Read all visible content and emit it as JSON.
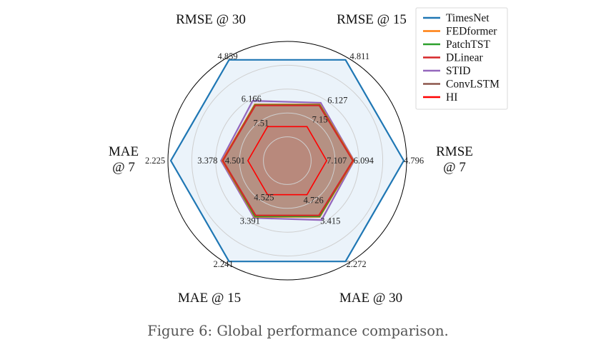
{
  "caption": "Figure 6: Global performance comparison.",
  "chart_data": {
    "type": "radar",
    "axes": [
      "RMSE @ 7",
      "RMSE @ 15",
      "RMSE @ 30",
      "MAE @ 7",
      "MAE @ 15",
      "MAE @ 30"
    ],
    "axis_label_lines": [
      [
        "RMSE",
        "@ 7"
      ],
      [
        "RMSE @ 15"
      ],
      [
        "RMSE @ 30"
      ],
      [
        "MAE",
        "@ 7"
      ],
      [
        "MAE @ 15"
      ],
      [
        "MAE @ 30"
      ]
    ],
    "radius_fraction": [
      0.976,
      0.976,
      0.976,
      0.976,
      0.976,
      0.976
    ],
    "series": [
      {
        "name": "TimesNet",
        "color": "#1f77b4",
        "fill": "#ddebf7",
        "fill_opacity": 0.6,
        "values": [
          0.976,
          0.976,
          0.976,
          0.976,
          0.976,
          0.976
        ]
      },
      {
        "name": "FEDformer",
        "color": "#ff7f0e",
        "fill": "#ff7f0e",
        "fill_opacity": 0.12,
        "values": [
          0.555,
          0.545,
          0.545,
          0.545,
          0.545,
          0.545
        ]
      },
      {
        "name": "PatchTST",
        "color": "#2ca02c",
        "fill": "#2ca02c",
        "fill_opacity": 0.1,
        "values": [
          0.55,
          0.54,
          0.54,
          0.54,
          0.54,
          0.54
        ]
      },
      {
        "name": "DLinear",
        "color": "#d62728",
        "fill": "#d62728",
        "fill_opacity": 0.1,
        "values": [
          0.55,
          0.535,
          0.535,
          0.54,
          0.53,
          0.53
        ]
      },
      {
        "name": "STID",
        "color": "#9467bd",
        "fill": "#9467bd",
        "fill_opacity": 0.12,
        "values": [
          0.56,
          0.56,
          0.58,
          0.555,
          0.555,
          0.575
        ]
      },
      {
        "name": "ConvLSTM",
        "color": "#8c564b",
        "fill": "#8c564b",
        "fill_opacity": 0.45,
        "values": [
          0.55,
          0.54,
          0.54,
          0.54,
          0.54,
          0.54
        ]
      },
      {
        "name": "HI",
        "color": "#ff0000",
        "fill": "#ff0000",
        "fill_opacity": 0.05,
        "values": [
          0.33,
          0.33,
          0.33,
          0.33,
          0.33,
          0.33
        ]
      }
    ],
    "value_labels": [
      {
        "axis": 0,
        "ring": "outer",
        "text": "4.796"
      },
      {
        "axis": 0,
        "ring": "middle",
        "text": "6.094"
      },
      {
        "axis": 0,
        "ring": "inner",
        "text": "7.107"
      },
      {
        "axis": 1,
        "ring": "outer",
        "text": "4.811"
      },
      {
        "axis": 1,
        "ring": "middle",
        "text": "6.127"
      },
      {
        "axis": 1,
        "ring": "inner",
        "text": "7.15"
      },
      {
        "axis": 2,
        "ring": "outer",
        "text": "4.859"
      },
      {
        "axis": 2,
        "ring": "middle",
        "text": "6.166"
      },
      {
        "axis": 2,
        "ring": "inner",
        "text": "7.51"
      },
      {
        "axis": 3,
        "ring": "outer",
        "text": "2.225"
      },
      {
        "axis": 3,
        "ring": "middle",
        "text": "3.378"
      },
      {
        "axis": 3,
        "ring": "inner",
        "text": "4.501"
      },
      {
        "axis": 4,
        "ring": "outer",
        "text": "2.241"
      },
      {
        "axis": 4,
        "ring": "middle",
        "text": "3.391"
      },
      {
        "axis": 4,
        "ring": "inner",
        "text": "4.525"
      },
      {
        "axis": 5,
        "ring": "outer",
        "text": "2.272"
      },
      {
        "axis": 5,
        "ring": "middle",
        "text": "3.415"
      },
      {
        "axis": 5,
        "ring": "inner",
        "text": "4.726"
      }
    ],
    "gridlines": true,
    "legend_position": "top-right"
  }
}
